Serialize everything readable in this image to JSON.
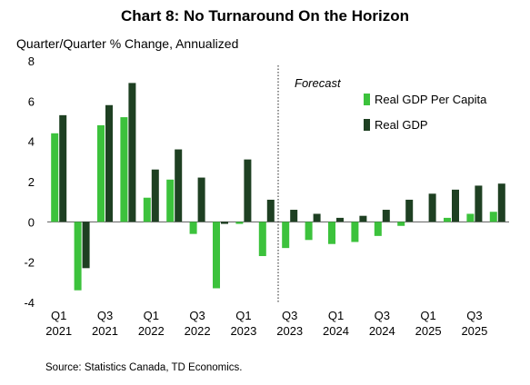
{
  "title": "Chart 8: No Turnaround On the Horizon",
  "subtitle": "Quarter/Quarter % Change, Annualized",
  "source": "Source: Statistics Canada, TD Economics.",
  "forecast_label": "Forecast",
  "colors": {
    "per_capita": "#3cc23c",
    "real_gdp": "#1e4022"
  },
  "chart_data": {
    "type": "bar",
    "categories": [
      "Q1 2021",
      "Q2 2021",
      "Q3 2021",
      "Q4 2021",
      "Q1 2022",
      "Q2 2022",
      "Q3 2022",
      "Q4 2022",
      "Q1 2023",
      "Q2 2023",
      "Q3 2023",
      "Q4 2023",
      "Q1 2024",
      "Q2 2024",
      "Q3 2024",
      "Q4 2024",
      "Q1 2025",
      "Q2 2025",
      "Q3 2025",
      "Q4 2025"
    ],
    "series": [
      {
        "name": "Real GDP Per Capita",
        "values": [
          4.4,
          -3.4,
          4.8,
          5.2,
          1.2,
          2.1,
          -0.6,
          -3.3,
          -0.1,
          -1.7,
          -1.3,
          -0.9,
          -1.1,
          -1.0,
          -0.7,
          -0.2,
          0.0,
          0.2,
          0.4,
          0.5
        ]
      },
      {
        "name": "Real GDP",
        "values": [
          5.3,
          -2.3,
          5.8,
          6.9,
          2.6,
          3.6,
          2.2,
          -0.1,
          3.1,
          1.1,
          0.6,
          0.4,
          0.2,
          0.3,
          0.6,
          1.1,
          1.4,
          1.6,
          1.8,
          1.9
        ]
      }
    ],
    "tick_labels": [
      {
        "top": "Q1",
        "bottom": "2021"
      },
      {
        "top": "Q3",
        "bottom": "2021"
      },
      {
        "top": "Q1",
        "bottom": "2022"
      },
      {
        "top": "Q3",
        "bottom": "2022"
      },
      {
        "top": "Q1",
        "bottom": "2023"
      },
      {
        "top": "Q3",
        "bottom": "2023"
      },
      {
        "top": "Q1",
        "bottom": "2024"
      },
      {
        "top": "Q3",
        "bottom": "2024"
      },
      {
        "top": "Q1",
        "bottom": "2025"
      },
      {
        "top": "Q3",
        "bottom": "2025"
      }
    ],
    "yticks": [
      -4,
      -2,
      0,
      2,
      4,
      6,
      8
    ],
    "ylim": [
      -4,
      8
    ],
    "forecast_start": "Q3 2023",
    "legend": "top-right",
    "grid": false
  }
}
